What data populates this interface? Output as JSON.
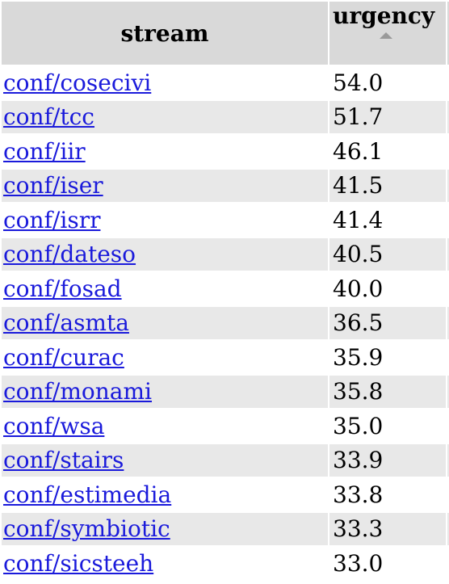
{
  "headers": {
    "stream": "stream",
    "urgency": "urgency"
  },
  "rows": [
    {
      "stream": "conf/cosecivi",
      "urgency": "54.0"
    },
    {
      "stream": "conf/tcc",
      "urgency": "51.7"
    },
    {
      "stream": "conf/iir",
      "urgency": "46.1"
    },
    {
      "stream": "conf/iser",
      "urgency": "41.5"
    },
    {
      "stream": "conf/isrr",
      "urgency": "41.4"
    },
    {
      "stream": "conf/dateso",
      "urgency": "40.5"
    },
    {
      "stream": "conf/fosad",
      "urgency": "40.0"
    },
    {
      "stream": "conf/asmta",
      "urgency": "36.5"
    },
    {
      "stream": "conf/curac",
      "urgency": "35.9"
    },
    {
      "stream": "conf/monami",
      "urgency": "35.8"
    },
    {
      "stream": "conf/wsa",
      "urgency": "35.0"
    },
    {
      "stream": "conf/stairs",
      "urgency": "33.9"
    },
    {
      "stream": "conf/estimedia",
      "urgency": "33.8"
    },
    {
      "stream": "conf/symbiotic",
      "urgency": "33.3"
    },
    {
      "stream": "conf/sicsteeh",
      "urgency": "33.0"
    }
  ]
}
